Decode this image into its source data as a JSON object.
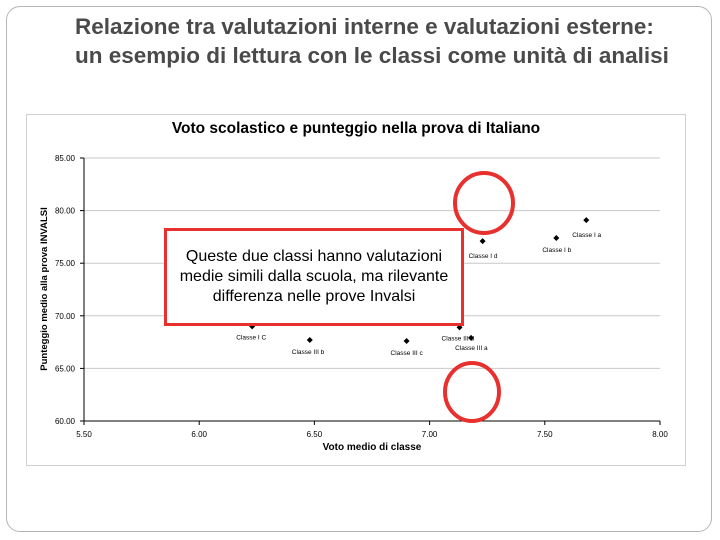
{
  "slide": {
    "title": "Relazione tra valutazioni interne e valutazioni esterne: un esempio di lettura con le classi come unità di analisi"
  },
  "callout": {
    "text": "Queste due classi hanno valutazioni medie simili dalla scuola, ma rilevante differenza nelle prove Invalsi"
  },
  "colors": {
    "highlight": "#e8302f",
    "marker": "#000000",
    "grid": "#c8c8c8",
    "title": "#4a4a4a"
  },
  "chart_data": {
    "type": "scatter",
    "title": "Voto scolastico e punteggio nella prova di Italiano",
    "xlabel": "Voto medio di classe",
    "ylabel": "Punteggio medio alla prova INVALSI",
    "xlim": [
      5.5,
      8.0
    ],
    "ylim": [
      60.0,
      85.0
    ],
    "xticks": [
      "5.50",
      "6.00",
      "6.50",
      "7.00",
      "7.50",
      "8.00"
    ],
    "yticks": [
      "60.00",
      "65.00",
      "70.00",
      "75.00",
      "80.00",
      "85.00"
    ],
    "grid": "horizontal",
    "points": [
      {
        "x": 7.68,
        "y": 79.1,
        "label": "Classe I a"
      },
      {
        "x": 7.55,
        "y": 77.4,
        "label": "Classe I b"
      },
      {
        "x": 7.23,
        "y": 77.1,
        "label": "Classe I d"
      },
      {
        "x": 6.23,
        "y": 69.0,
        "label": "Classe I C"
      },
      {
        "x": 6.48,
        "y": 67.7,
        "label": "Classe III b"
      },
      {
        "x": 6.9,
        "y": 67.6,
        "label": "Classe III c"
      },
      {
        "x": 7.13,
        "y": 68.9,
        "label": "Classe III d"
      },
      {
        "x": 7.18,
        "y": 67.9,
        "label": "Classe III a"
      }
    ]
  }
}
